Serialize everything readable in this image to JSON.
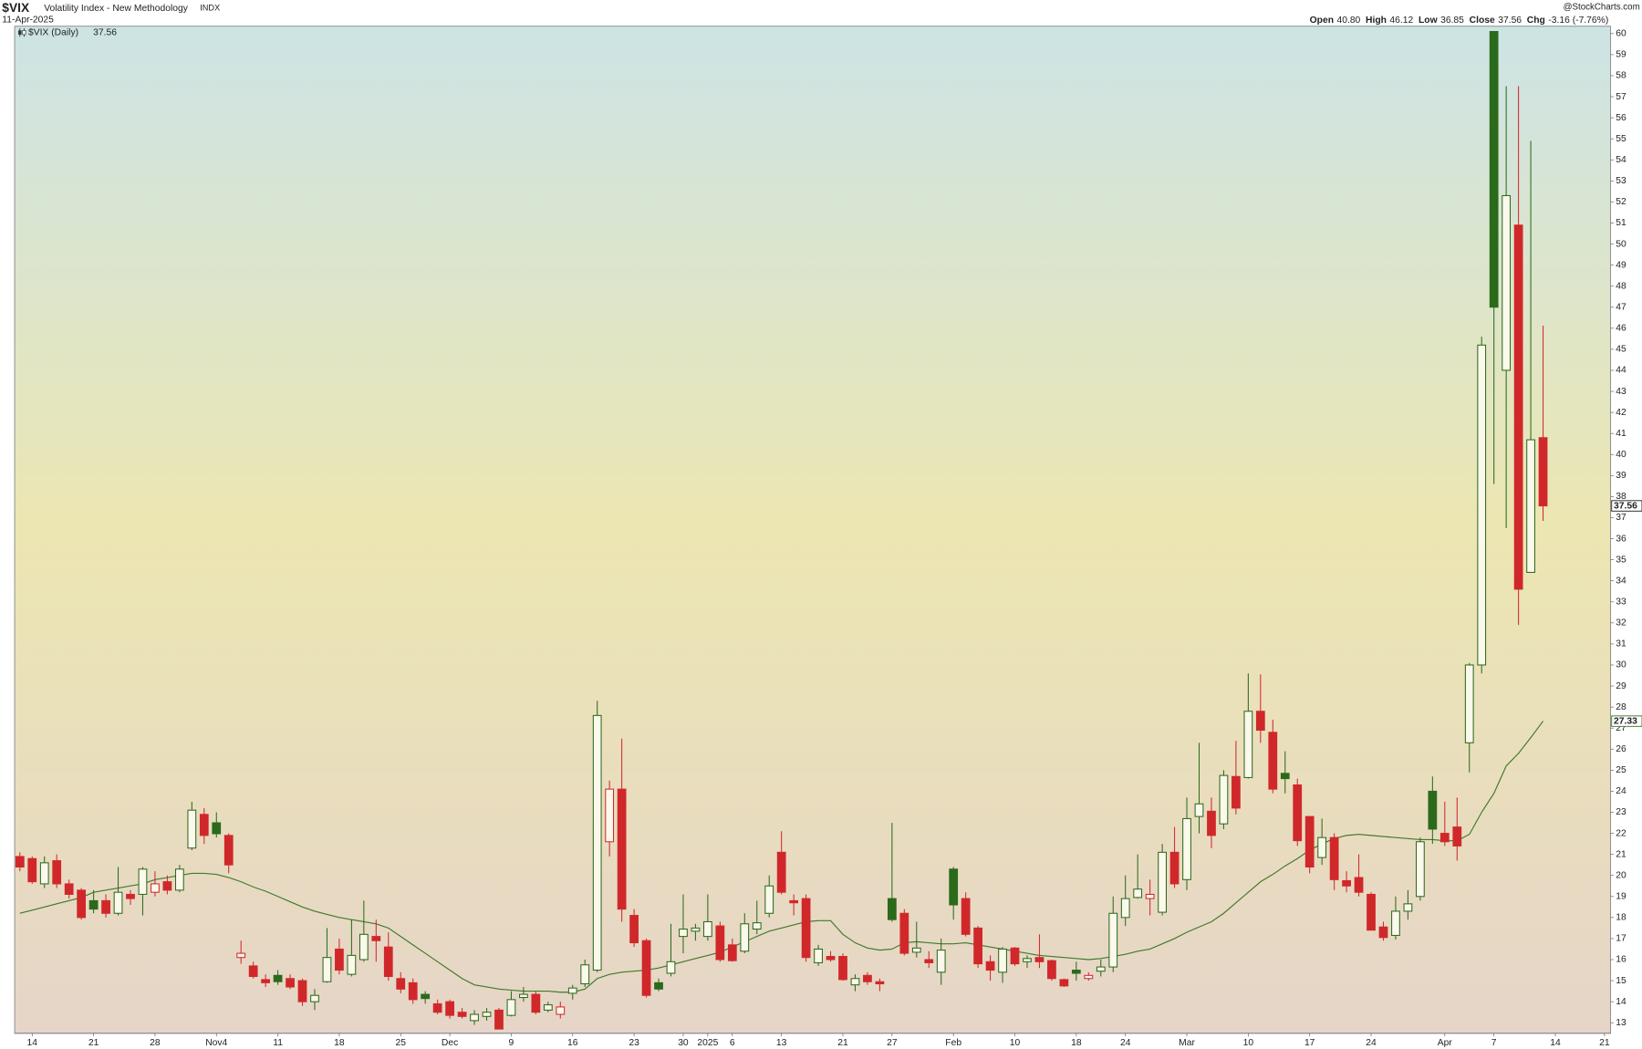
{
  "chart_data": {
    "type": "candlestick",
    "title": "$VIX",
    "subtitle": "Volatility Index - New Methodology",
    "exchange": "INDX",
    "date": "11-Apr-2025",
    "source": "@StockCharts.com",
    "quote": [
      {
        "name": "Open",
        "text": "40.80"
      },
      {
        "name": "High",
        "text": "46.12"
      },
      {
        "name": "Low",
        "text": "36.85"
      },
      {
        "name": "Close",
        "text": "37.56"
      },
      {
        "name": "Chg",
        "text": "-3.16 (-7.76%)"
      }
    ],
    "legend": "$VIX (Daily)",
    "up_color": "#2b6a1b",
    "down_color": "#d0282a",
    "sma": {
      "color": "#3f7a2a",
      "values": [
        18.2,
        18.35,
        18.5,
        18.65,
        18.8,
        18.95,
        19.2,
        19.3,
        19.4,
        19.5,
        19.6,
        19.8,
        19.9,
        20.0,
        20.1,
        20.1,
        20.05,
        19.9,
        19.7,
        19.45,
        19.25,
        19.0,
        18.75,
        18.5,
        18.3,
        18.15,
        18.0,
        17.9,
        17.8,
        17.7,
        17.5,
        17.1,
        16.7,
        16.3,
        15.9,
        15.5,
        15.1,
        14.8,
        14.7,
        14.6,
        14.55,
        14.5,
        14.5,
        14.5,
        14.45,
        14.45,
        14.6,
        15.1,
        15.3,
        15.4,
        15.45,
        15.5,
        15.6,
        15.75,
        15.9,
        16.05,
        16.2,
        16.35,
        16.6,
        16.85,
        17.1,
        17.35,
        17.5,
        17.65,
        17.8,
        17.85,
        17.85,
        17.2,
        16.8,
        16.55,
        16.45,
        16.5,
        16.8,
        16.85,
        16.8,
        16.75,
        16.75,
        16.8,
        16.7,
        16.6,
        16.5,
        16.4,
        16.3,
        16.2,
        16.15,
        16.1,
        16.05,
        16.0,
        16.05,
        16.15,
        16.25,
        16.4,
        16.5,
        16.75,
        17.0,
        17.3,
        17.55,
        17.8,
        18.2,
        18.7,
        19.2,
        19.7,
        20.05,
        20.45,
        20.8,
        21.2,
        21.5,
        21.75,
        21.9,
        21.95,
        21.9,
        21.85,
        21.8,
        21.75,
        21.7,
        21.7,
        21.65,
        21.65,
        21.95,
        23.0,
        23.9,
        25.2,
        25.8,
        26.55,
        27.33
      ]
    },
    "categories": [
      null,
      "14",
      null,
      null,
      null,
      null,
      "21",
      null,
      null,
      null,
      null,
      "28",
      null,
      null,
      null,
      null,
      "Nov4",
      null,
      null,
      null,
      null,
      "11",
      null,
      null,
      null,
      null,
      "18",
      null,
      null,
      null,
      null,
      "25",
      null,
      null,
      null,
      "Dec",
      null,
      null,
      null,
      null,
      "9",
      null,
      null,
      null,
      null,
      "16",
      null,
      null,
      null,
      null,
      "23",
      null,
      null,
      null,
      "30",
      null,
      "2025",
      null,
      "6",
      null,
      null,
      null,
      "13",
      null,
      null,
      null,
      null,
      "21",
      null,
      null,
      null,
      "27",
      null,
      null,
      null,
      null,
      "Feb",
      null,
      null,
      null,
      null,
      "10",
      null,
      null,
      null,
      null,
      "18",
      null,
      null,
      null,
      "24",
      null,
      null,
      null,
      null,
      "Mar",
      null,
      null,
      null,
      null,
      "10",
      null,
      null,
      null,
      null,
      "17",
      null,
      null,
      null,
      null,
      "24",
      null,
      null,
      null,
      null,
      null,
      "Apr",
      null,
      null,
      null,
      "7",
      null,
      null,
      null,
      null
    ],
    "future_categories": [
      "14",
      null,
      null,
      null,
      "21"
    ],
    "open": [
      20.9,
      20.8,
      19.6,
      20.7,
      19.6,
      19.3,
      18.8,
      18.8,
      18.2,
      19.1,
      19.1,
      19.2,
      19.7,
      19.3,
      21.3,
      22.9,
      22.5,
      21.9,
      16.1,
      15.7,
      15.05,
      15.25,
      15.1,
      15.0,
      14.0,
      14.95,
      16.5,
      15.3,
      16.0,
      17.1,
      16.6,
      15.1,
      14.9,
      14.35,
      13.9,
      14.0,
      13.5,
      13.1,
      13.3,
      13.6,
      13.35,
      14.2,
      14.35,
      13.6,
      13.4,
      14.4,
      14.85,
      15.5,
      21.6,
      24.1,
      18.1,
      16.9,
      14.9,
      15.35,
      17.1,
      17.35,
      17.1,
      17.6,
      16.7,
      16.4,
      17.45,
      18.2,
      21.1,
      18.8,
      18.9,
      15.85,
      16.15,
      16.15,
      14.8,
      15.25,
      14.95,
      18.9,
      18.2,
      16.35,
      16.0,
      15.4,
      20.3,
      18.9,
      17.5,
      15.9,
      15.4,
      16.55,
      15.9,
      16.1,
      15.95,
      15.05,
      15.5,
      15.1,
      15.45,
      15.65,
      18.0,
      18.95,
      18.9,
      18.25,
      21.1,
      19.8,
      22.8,
      23.05,
      22.45,
      24.7,
      24.65,
      27.8,
      26.8,
      24.85,
      24.3,
      22.8,
      20.85,
      21.8,
      19.75,
      19.9,
      19.1,
      17.55,
      17.15,
      18.3,
      19.0,
      24.0,
      22.0,
      22.3,
      26.3,
      30.0,
      60.1,
      44.0,
      50.9,
      34.4,
      40.8
    ],
    "high": [
      21.1,
      20.9,
      20.9,
      21.0,
      19.8,
      19.4,
      19.3,
      19.1,
      20.4,
      19.3,
      20.4,
      20.2,
      20.0,
      20.5,
      23.5,
      23.2,
      23.0,
      22.0,
      16.9,
      15.9,
      15.3,
      15.5,
      15.3,
      15.1,
      14.6,
      17.5,
      17.0,
      17.9,
      18.8,
      17.9,
      17.3,
      15.4,
      15.1,
      14.5,
      14.1,
      14.1,
      13.7,
      13.6,
      13.7,
      13.7,
      14.5,
      14.7,
      14.5,
      14.0,
      14.0,
      14.8,
      16.0,
      28.3,
      24.5,
      26.5,
      18.4,
      17.0,
      15.1,
      17.7,
      19.1,
      17.7,
      19.1,
      17.8,
      17.0,
      18.2,
      18.8,
      20.0,
      22.1,
      19.1,
      19.1,
      16.7,
      16.4,
      16.3,
      15.3,
      15.4,
      15.1,
      22.5,
      18.4,
      17.8,
      16.4,
      17.0,
      20.4,
      19.2,
      17.6,
      16.2,
      16.6,
      16.6,
      16.2,
      17.2,
      16.0,
      15.1,
      15.9,
      15.4,
      16.0,
      19.0,
      20.0,
      21.0,
      19.8,
      21.5,
      22.3,
      23.7,
      26.3,
      23.7,
      25.0,
      26.4,
      29.6,
      29.55,
      27.4,
      25.9,
      24.6,
      22.8,
      22.7,
      22.0,
      20.2,
      21.0,
      19.2,
      17.8,
      19.0,
      19.3,
      21.8,
      24.7,
      23.5,
      23.7,
      30.1,
      45.6,
      60.1,
      57.5,
      57.5,
      54.9,
      46.12
    ],
    "low": [
      20.2,
      19.6,
      19.4,
      19.4,
      18.9,
      17.9,
      18.2,
      18.0,
      18.1,
      18.6,
      18.1,
      19.0,
      19.1,
      19.2,
      21.2,
      21.5,
      21.8,
      20.1,
      15.8,
      15.1,
      14.7,
      14.8,
      14.6,
      13.8,
      13.6,
      14.9,
      15.3,
      15.2,
      15.9,
      15.9,
      15.0,
      14.4,
      13.9,
      13.9,
      13.4,
      13.2,
      13.2,
      12.9,
      13.1,
      12.7,
      13.3,
      14.0,
      13.4,
      13.5,
      13.2,
      14.1,
      14.7,
      15.4,
      20.9,
      17.8,
      16.6,
      14.2,
      14.5,
      15.2,
      16.3,
      16.9,
      16.9,
      15.9,
      15.9,
      16.3,
      17.2,
      18.0,
      19.1,
      18.1,
      15.9,
      15.7,
      15.9,
      15.0,
      14.5,
      14.8,
      14.5,
      17.8,
      16.2,
      16.1,
      15.6,
      14.8,
      17.9,
      17.1,
      15.6,
      15.0,
      14.9,
      15.7,
      15.6,
      15.6,
      15.0,
      14.7,
      15.0,
      15.0,
      15.2,
      15.4,
      17.6,
      18.9,
      18.1,
      18.1,
      19.4,
      19.3,
      22.0,
      21.3,
      22.2,
      22.9,
      24.6,
      26.3,
      23.9,
      23.9,
      21.4,
      20.1,
      20.5,
      19.3,
      19.2,
      19.0,
      17.4,
      16.9,
      16.95,
      17.9,
      18.8,
      21.5,
      21.4,
      20.7,
      24.9,
      29.6,
      38.6,
      36.5,
      31.9,
      34.4,
      36.85
    ],
    "close": [
      20.4,
      19.7,
      20.6,
      19.6,
      19.1,
      18.0,
      18.4,
      18.2,
      19.2,
      18.9,
      20.3,
      19.6,
      19.3,
      20.3,
      23.1,
      21.9,
      21.98,
      20.5,
      16.3,
      15.2,
      14.9,
      14.95,
      14.7,
      14.0,
      14.3,
      16.1,
      15.5,
      16.2,
      17.2,
      16.9,
      15.2,
      14.6,
      14.1,
      14.15,
      13.5,
      13.35,
      13.3,
      13.4,
      13.5,
      12.7,
      14.1,
      14.35,
      13.5,
      13.85,
      13.75,
      14.65,
      15.75,
      27.6,
      24.1,
      18.4,
      16.8,
      14.3,
      14.6,
      15.9,
      17.45,
      17.5,
      17.8,
      16.0,
      15.95,
      17.7,
      17.75,
      19.5,
      19.2,
      18.7,
      16.1,
      16.5,
      16.0,
      15.05,
      15.1,
      14.95,
      14.85,
      17.9,
      16.3,
      16.55,
      15.85,
      16.45,
      18.6,
      17.2,
      15.8,
      15.5,
      16.5,
      15.8,
      16.05,
      15.9,
      15.1,
      14.75,
      15.35,
      15.25,
      15.65,
      18.2,
      18.9,
      19.35,
      19.1,
      21.1,
      19.6,
      22.7,
      23.4,
      21.9,
      24.75,
      23.2,
      27.8,
      26.9,
      24.1,
      24.6,
      21.65,
      20.4,
      21.8,
      19.8,
      19.5,
      19.2,
      17.4,
      17.05,
      18.3,
      18.65,
      21.6,
      22.2,
      21.6,
      21.4,
      30.0,
      45.2,
      47.0,
      52.3,
      33.6,
      40.7,
      37.56
    ],
    "ylim": [
      12.5,
      60.35
    ],
    "yticks": [
      13,
      14,
      15,
      16,
      17,
      18,
      19,
      20,
      21,
      22,
      23,
      24,
      25,
      26,
      27,
      28,
      29,
      30,
      31,
      32,
      33,
      34,
      35,
      36,
      37,
      38,
      39,
      40,
      41,
      42,
      43,
      44,
      45,
      46,
      47,
      48,
      49,
      50,
      51,
      52,
      53,
      54,
      55,
      56,
      57,
      58,
      59,
      60
    ],
    "grid": false
  }
}
